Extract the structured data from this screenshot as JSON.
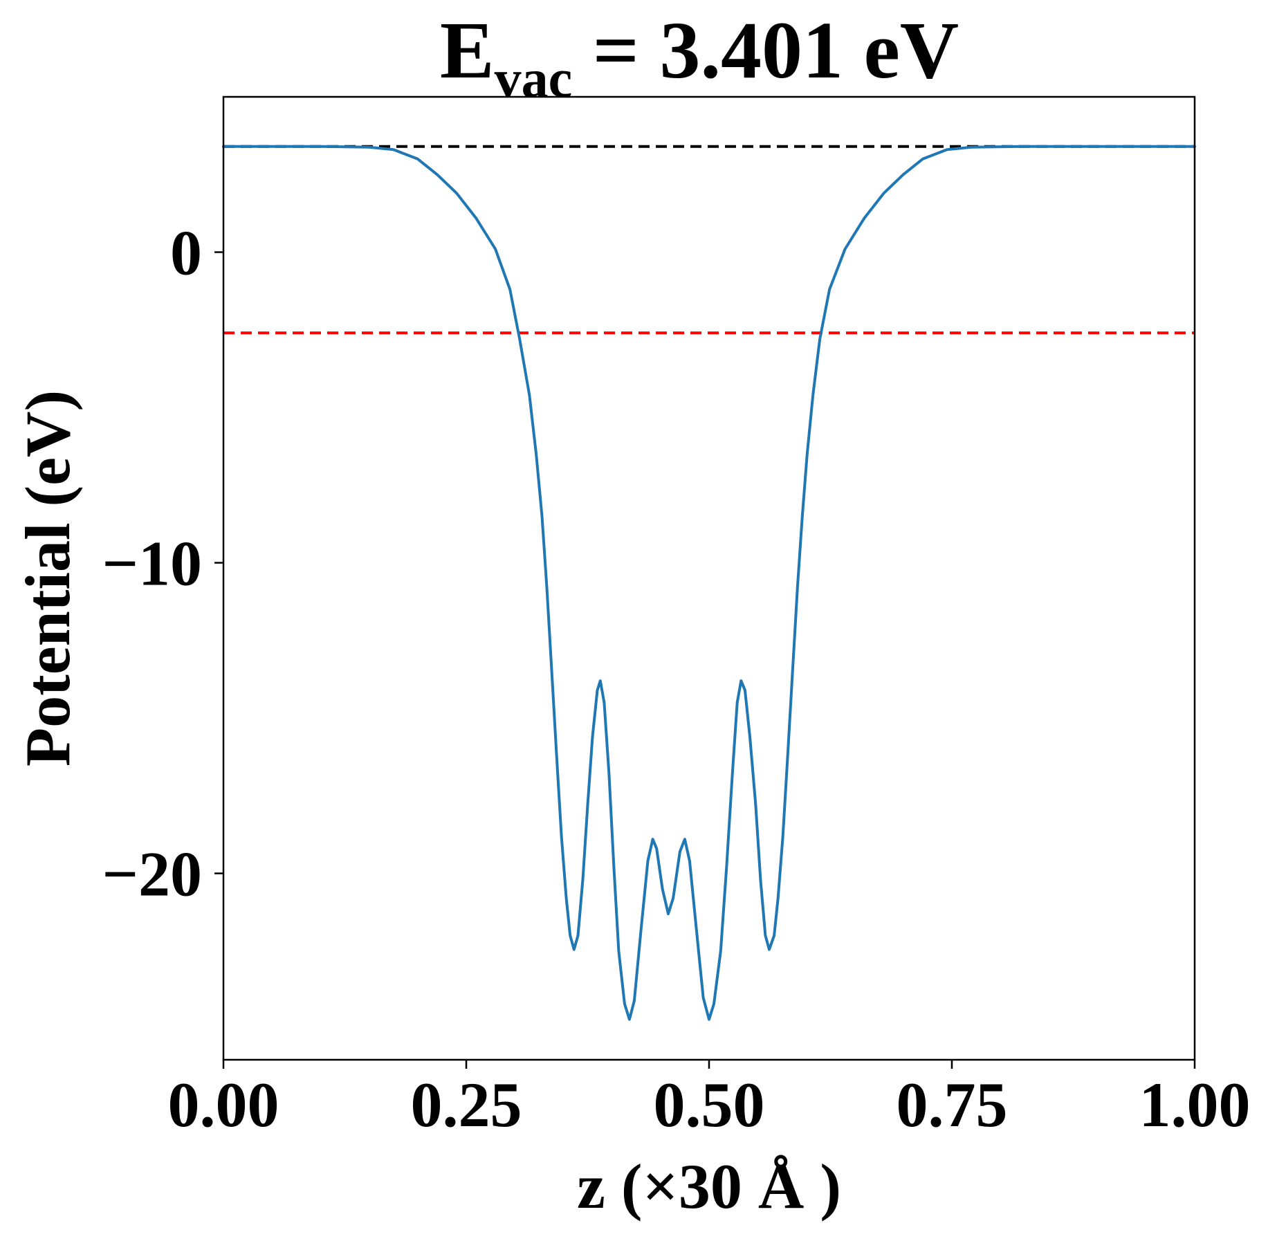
{
  "chart_data": {
    "type": "line",
    "title": {
      "main": "E",
      "subscript": "vac",
      "rest": " = 3.401 eV"
    },
    "xlabel": "z (×30 Å )",
    "ylabel": "Potential (eV)",
    "xlim": [
      0,
      1
    ],
    "ylim": [
      -26,
      5
    ],
    "x_ticks": [
      {
        "value": 0,
        "label": "0.00"
      },
      {
        "value": 0.25,
        "label": "0.25"
      },
      {
        "value": 0.5,
        "label": "0.50"
      },
      {
        "value": 0.75,
        "label": "0.75"
      },
      {
        "value": 1,
        "label": "1.00"
      }
    ],
    "y_ticks": [
      {
        "value": 0,
        "label": "0"
      },
      {
        "value": -10,
        "label": "−10"
      },
      {
        "value": -20,
        "label": "−20"
      }
    ],
    "grid": false,
    "legend": "none",
    "series": [
      {
        "color": "#1f77b4",
        "style": "solid",
        "points": [
          [
            0.0,
            3.4
          ],
          [
            0.05,
            3.4
          ],
          [
            0.1,
            3.4
          ],
          [
            0.15,
            3.38
          ],
          [
            0.175,
            3.3
          ],
          [
            0.2,
            3.0
          ],
          [
            0.22,
            2.5
          ],
          [
            0.24,
            1.9
          ],
          [
            0.26,
            1.1
          ],
          [
            0.28,
            0.1
          ],
          [
            0.295,
            -1.2
          ],
          [
            0.305,
            -2.8
          ],
          [
            0.315,
            -4.6
          ],
          [
            0.322,
            -6.5
          ],
          [
            0.328,
            -8.5
          ],
          [
            0.333,
            -10.8
          ],
          [
            0.338,
            -13.5
          ],
          [
            0.343,
            -16.2
          ],
          [
            0.348,
            -18.8
          ],
          [
            0.353,
            -20.8
          ],
          [
            0.357,
            -22.0
          ],
          [
            0.361,
            -22.45
          ],
          [
            0.365,
            -22.0
          ],
          [
            0.37,
            -20.2
          ],
          [
            0.375,
            -17.8
          ],
          [
            0.38,
            -15.6
          ],
          [
            0.385,
            -14.1
          ],
          [
            0.388,
            -13.8
          ],
          [
            0.392,
            -14.5
          ],
          [
            0.397,
            -16.8
          ],
          [
            0.402,
            -19.8
          ],
          [
            0.407,
            -22.5
          ],
          [
            0.413,
            -24.2
          ],
          [
            0.418,
            -24.7
          ],
          [
            0.423,
            -24.1
          ],
          [
            0.43,
            -21.8
          ],
          [
            0.437,
            -19.6
          ],
          [
            0.442,
            -18.9
          ],
          [
            0.446,
            -19.2
          ],
          [
            0.452,
            -20.5
          ],
          [
            0.458,
            -21.3
          ],
          [
            0.463,
            -20.8
          ],
          [
            0.47,
            -19.3
          ],
          [
            0.475,
            -18.9
          ],
          [
            0.48,
            -19.6
          ],
          [
            0.487,
            -21.8
          ],
          [
            0.494,
            -24.0
          ],
          [
            0.5,
            -24.7
          ],
          [
            0.505,
            -24.2
          ],
          [
            0.512,
            -22.5
          ],
          [
            0.518,
            -19.8
          ],
          [
            0.524,
            -16.8
          ],
          [
            0.529,
            -14.5
          ],
          [
            0.533,
            -13.8
          ],
          [
            0.537,
            -14.1
          ],
          [
            0.542,
            -15.6
          ],
          [
            0.548,
            -17.8
          ],
          [
            0.553,
            -20.2
          ],
          [
            0.558,
            -22.0
          ],
          [
            0.562,
            -22.45
          ],
          [
            0.567,
            -22.0
          ],
          [
            0.571,
            -20.8
          ],
          [
            0.576,
            -18.8
          ],
          [
            0.581,
            -16.2
          ],
          [
            0.586,
            -13.5
          ],
          [
            0.591,
            -10.8
          ],
          [
            0.596,
            -8.5
          ],
          [
            0.601,
            -6.5
          ],
          [
            0.607,
            -4.6
          ],
          [
            0.614,
            -2.8
          ],
          [
            0.624,
            -1.2
          ],
          [
            0.64,
            0.1
          ],
          [
            0.66,
            1.1
          ],
          [
            0.68,
            1.9
          ],
          [
            0.7,
            2.5
          ],
          [
            0.72,
            3.0
          ],
          [
            0.745,
            3.3
          ],
          [
            0.77,
            3.38
          ],
          [
            0.82,
            3.4
          ],
          [
            0.9,
            3.4
          ],
          [
            1.0,
            3.4
          ]
        ]
      }
    ],
    "reference_lines": [
      {
        "y": 3.401,
        "color": "#000000",
        "style": "dashed"
      },
      {
        "y": -2.6,
        "color": "#ff0000",
        "style": "dashed"
      }
    ]
  }
}
